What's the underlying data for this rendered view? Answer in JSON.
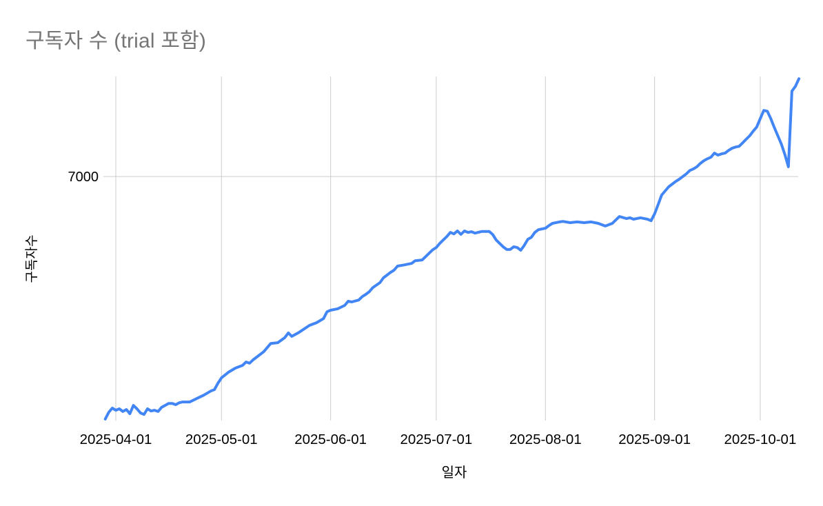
{
  "chart": {
    "title": "구독자 수 (trial 포함)",
    "x_axis_label": "일자",
    "y_axis_label": "구독자수",
    "y_tick_labels": [
      "7000"
    ],
    "x_tick_labels": [
      "2025-04-01",
      "2025-05-01",
      "2025-06-01",
      "2025-07-01",
      "2025-08-01",
      "2025-09-01",
      "2025-10-01"
    ],
    "colors": {
      "line": "#4285f4",
      "gridline": "#cccccc",
      "title_text": "#757575",
      "axis_text": "#000000",
      "background": "#ffffff"
    }
  },
  "chart_data": {
    "type": "line",
    "title": "구독자 수 (trial 포함)",
    "xlabel": "일자",
    "ylabel": "구독자수",
    "legend": "none",
    "grid": "vertical gridlines at month starts; single horizontal gridline at y=7000",
    "x_ticks": [
      "2025-04-01",
      "2025-05-01",
      "2025-06-01",
      "2025-07-01",
      "2025-08-01",
      "2025-09-01",
      "2025-10-01"
    ],
    "y_ticks": [
      7000
    ],
    "ylim": [
      6000,
      7410
    ],
    "x_range": [
      "2025-03-29",
      "2025-10-12"
    ],
    "series": [
      {
        "name": "구독자 수 (trial 포함)",
        "color": "#4285f4",
        "points": [
          [
            "2025-03-29",
            6006
          ],
          [
            "2025-03-30",
            6034
          ],
          [
            "2025-03-31",
            6051
          ],
          [
            "2025-04-01",
            6042
          ],
          [
            "2025-04-02",
            6048
          ],
          [
            "2025-04-03",
            6037
          ],
          [
            "2025-04-04",
            6045
          ],
          [
            "2025-04-05",
            6028
          ],
          [
            "2025-04-06",
            6062
          ],
          [
            "2025-04-07",
            6048
          ],
          [
            "2025-04-08",
            6031
          ],
          [
            "2025-04-09",
            6025
          ],
          [
            "2025-04-10",
            6048
          ],
          [
            "2025-04-11",
            6039
          ],
          [
            "2025-04-12",
            6042
          ],
          [
            "2025-04-13",
            6037
          ],
          [
            "2025-04-14",
            6054
          ],
          [
            "2025-04-15",
            6062
          ],
          [
            "2025-04-16",
            6070
          ],
          [
            "2025-04-17",
            6070
          ],
          [
            "2025-04-18",
            6065
          ],
          [
            "2025-04-19",
            6073
          ],
          [
            "2025-04-20",
            6076
          ],
          [
            "2025-04-22",
            6076
          ],
          [
            "2025-04-24",
            6090
          ],
          [
            "2025-04-26",
            6104
          ],
          [
            "2025-04-28",
            6121
          ],
          [
            "2025-04-29",
            6127
          ],
          [
            "2025-04-30",
            6153
          ],
          [
            "2025-05-01",
            6175
          ],
          [
            "2025-05-03",
            6198
          ],
          [
            "2025-05-05",
            6215
          ],
          [
            "2025-05-07",
            6226
          ],
          [
            "2025-05-08",
            6240
          ],
          [
            "2025-05-09",
            6235
          ],
          [
            "2025-05-10",
            6249
          ],
          [
            "2025-05-11",
            6260
          ],
          [
            "2025-05-13",
            6282
          ],
          [
            "2025-05-15",
            6316
          ],
          [
            "2025-05-17",
            6319
          ],
          [
            "2025-05-19",
            6340
          ],
          [
            "2025-05-20",
            6359
          ],
          [
            "2025-05-21",
            6345
          ],
          [
            "2025-05-23",
            6361
          ],
          [
            "2025-05-26",
            6390
          ],
          [
            "2025-05-28",
            6401
          ],
          [
            "2025-05-30",
            6418
          ],
          [
            "2025-05-31",
            6446
          ],
          [
            "2025-06-01",
            6452
          ],
          [
            "2025-06-03",
            6458
          ],
          [
            "2025-06-05",
            6472
          ],
          [
            "2025-06-06",
            6489
          ],
          [
            "2025-06-07",
            6486
          ],
          [
            "2025-06-09",
            6494
          ],
          [
            "2025-06-10",
            6508
          ],
          [
            "2025-06-11",
            6517
          ],
          [
            "2025-06-12",
            6528
          ],
          [
            "2025-06-13",
            6545
          ],
          [
            "2025-06-15",
            6565
          ],
          [
            "2025-06-16",
            6585
          ],
          [
            "2025-06-18",
            6607
          ],
          [
            "2025-06-19",
            6616
          ],
          [
            "2025-06-20",
            6633
          ],
          [
            "2025-06-22",
            6638
          ],
          [
            "2025-06-24",
            6644
          ],
          [
            "2025-06-25",
            6655
          ],
          [
            "2025-06-27",
            6658
          ],
          [
            "2025-06-28",
            6672
          ],
          [
            "2025-06-29",
            6686
          ],
          [
            "2025-06-30",
            6700
          ],
          [
            "2025-07-01",
            6709
          ],
          [
            "2025-07-02",
            6726
          ],
          [
            "2025-07-03",
            6740
          ],
          [
            "2025-07-04",
            6754
          ],
          [
            "2025-07-05",
            6771
          ],
          [
            "2025-07-06",
            6765
          ],
          [
            "2025-07-07",
            6777
          ],
          [
            "2025-07-08",
            6763
          ],
          [
            "2025-07-09",
            6777
          ],
          [
            "2025-07-10",
            6771
          ],
          [
            "2025-07-11",
            6774
          ],
          [
            "2025-07-12",
            6768
          ],
          [
            "2025-07-14",
            6775
          ],
          [
            "2025-07-16",
            6775
          ],
          [
            "2025-07-17",
            6763
          ],
          [
            "2025-07-18",
            6740
          ],
          [
            "2025-07-19",
            6726
          ],
          [
            "2025-07-20",
            6712
          ],
          [
            "2025-07-21",
            6701
          ],
          [
            "2025-07-22",
            6701
          ],
          [
            "2025-07-23",
            6712
          ],
          [
            "2025-07-24",
            6709
          ],
          [
            "2025-07-25",
            6698
          ],
          [
            "2025-07-26",
            6718
          ],
          [
            "2025-07-27",
            6743
          ],
          [
            "2025-07-28",
            6751
          ],
          [
            "2025-07-29",
            6771
          ],
          [
            "2025-07-30",
            6782
          ],
          [
            "2025-08-01",
            6788
          ],
          [
            "2025-08-02",
            6799
          ],
          [
            "2025-08-03",
            6808
          ],
          [
            "2025-08-05",
            6814
          ],
          [
            "2025-08-06",
            6816
          ],
          [
            "2025-08-08",
            6811
          ],
          [
            "2025-08-10",
            6814
          ],
          [
            "2025-08-12",
            6811
          ],
          [
            "2025-08-14",
            6814
          ],
          [
            "2025-08-16",
            6808
          ],
          [
            "2025-08-18",
            6797
          ],
          [
            "2025-08-20",
            6808
          ],
          [
            "2025-08-22",
            6836
          ],
          [
            "2025-08-24",
            6828
          ],
          [
            "2025-08-25",
            6831
          ],
          [
            "2025-08-26",
            6825
          ],
          [
            "2025-08-28",
            6831
          ],
          [
            "2025-08-30",
            6825
          ],
          [
            "2025-08-31",
            6819
          ],
          [
            "2025-09-01",
            6847
          ],
          [
            "2025-09-02",
            6885
          ],
          [
            "2025-09-03",
            6924
          ],
          [
            "2025-09-04",
            6941
          ],
          [
            "2025-09-05",
            6958
          ],
          [
            "2025-09-06",
            6969
          ],
          [
            "2025-09-07",
            6980
          ],
          [
            "2025-09-08",
            6989
          ],
          [
            "2025-09-09",
            7000
          ],
          [
            "2025-09-10",
            7011
          ],
          [
            "2025-09-11",
            7025
          ],
          [
            "2025-09-12",
            7031
          ],
          [
            "2025-09-13",
            7040
          ],
          [
            "2025-09-14",
            7054
          ],
          [
            "2025-09-15",
            7065
          ],
          [
            "2025-09-16",
            7073
          ],
          [
            "2025-09-17",
            7079
          ],
          [
            "2025-09-18",
            7096
          ],
          [
            "2025-09-19",
            7088
          ],
          [
            "2025-09-20",
            7093
          ],
          [
            "2025-09-21",
            7096
          ],
          [
            "2025-09-22",
            7107
          ],
          [
            "2025-09-23",
            7116
          ],
          [
            "2025-09-24",
            7121
          ],
          [
            "2025-09-25",
            7124
          ],
          [
            "2025-09-26",
            7138
          ],
          [
            "2025-09-27",
            7153
          ],
          [
            "2025-09-28",
            7167
          ],
          [
            "2025-09-29",
            7186
          ],
          [
            "2025-09-30",
            7203
          ],
          [
            "2025-10-01",
            7237
          ],
          [
            "2025-10-02",
            7271
          ],
          [
            "2025-10-03",
            7268
          ],
          [
            "2025-10-04",
            7237
          ],
          [
            "2025-10-05",
            7201
          ],
          [
            "2025-10-06",
            7167
          ],
          [
            "2025-10-07",
            7133
          ],
          [
            "2025-10-08",
            7090
          ],
          [
            "2025-10-09",
            7040
          ],
          [
            "2025-10-10",
            7350
          ],
          [
            "2025-10-11",
            7370
          ],
          [
            "2025-10-12",
            7401
          ]
        ]
      }
    ]
  }
}
